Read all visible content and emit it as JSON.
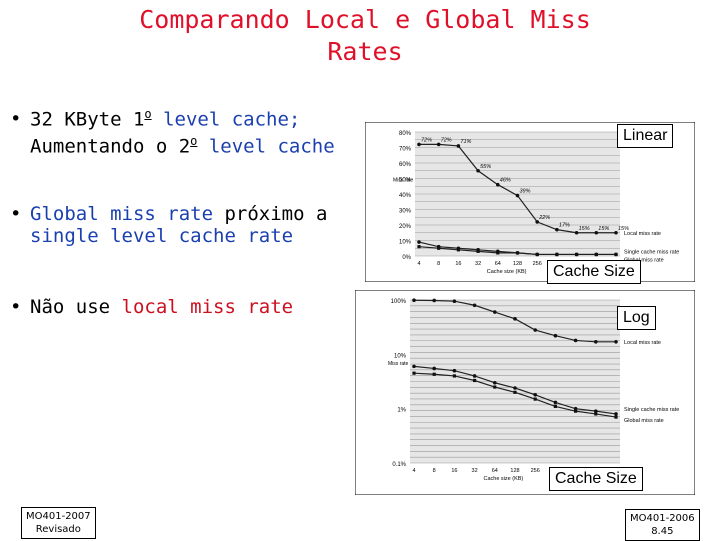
{
  "title": "Comparando Local e Global Miss Rates",
  "bullets": {
    "b1_part1": "32 KByte 1",
    "b1_ord1": "o",
    "b1_part2": " level cache;",
    "b1_line2a": "Aumentando o 2",
    "b1_ord2": "o",
    "b1_line2b": " level cache",
    "b2_part1": "Global miss rate",
    "b2_part2": " próximo a",
    "b2_line2": "single level cache rate",
    "b3_part1": "Não use ",
    "b3_part2": "local miss rate"
  },
  "labels": {
    "linear": "Linear",
    "log": "Log",
    "cache_size_1": "Cache Size",
    "cache_size_2": "Cache Size"
  },
  "footer": {
    "left_line1": "MO401-2007",
    "left_line2": "Revisado",
    "right_line1": "MO401-2006",
    "right_line2": "8.45"
  },
  "chart_data": [
    {
      "type": "line",
      "title": "",
      "xlabel": "Cache size (KB)",
      "ylabel": "Miss rate",
      "x": [
        "4",
        "8",
        "16",
        "32",
        "64",
        "128",
        "256",
        "512",
        "1024",
        "2048",
        "4096"
      ],
      "ylim": [
        0,
        80
      ],
      "yticks": [
        "0%",
        "10%",
        "20%",
        "30%",
        "40%",
        "50%",
        "60%",
        "70%",
        "80%"
      ],
      "series": [
        {
          "name": "Local miss rate",
          "values": [
            72,
            72,
            71,
            55,
            46,
            39,
            22,
            17,
            15,
            15,
            15
          ]
        },
        {
          "name": "Single cache miss rate",
          "values": [
            9,
            6,
            5,
            4,
            3,
            2,
            1,
            1,
            1,
            1,
            1
          ]
        },
        {
          "name": "Global miss rate",
          "values": [
            6,
            5,
            4,
            3,
            2,
            2,
            1,
            1,
            1,
            1,
            1
          ]
        }
      ],
      "point_labels": [
        "72%",
        "72%",
        "71%",
        "55%",
        "46%",
        "39%",
        "22%",
        "17%",
        "15%",
        "15%",
        "15%"
      ],
      "scale": "linear"
    },
    {
      "type": "line",
      "title": "",
      "xlabel": "Cache size (KB)",
      "ylabel": "Miss rate",
      "x": [
        "4",
        "8",
        "16",
        "32",
        "64",
        "128",
        "256",
        "512",
        "1024",
        "2048",
        "4096"
      ],
      "ylim": [
        0.1,
        100
      ],
      "yticks": [
        "0.1%",
        "1%",
        "10%",
        "100%"
      ],
      "series": [
        {
          "name": "Local miss rate",
          "values": [
            99,
            98,
            95,
            80,
            60,
            45,
            28,
            22,
            18,
            17,
            17
          ]
        },
        {
          "name": "Single cache miss rate",
          "values": [
            6,
            5.5,
            5,
            4,
            3,
            2.4,
            1.8,
            1.3,
            1.0,
            0.9,
            0.8
          ]
        },
        {
          "name": "Global miss rate",
          "values": [
            4.5,
            4.3,
            4.0,
            3.3,
            2.5,
            2.0,
            1.5,
            1.1,
            0.9,
            0.8,
            0.7
          ]
        }
      ],
      "scale": "log"
    }
  ]
}
